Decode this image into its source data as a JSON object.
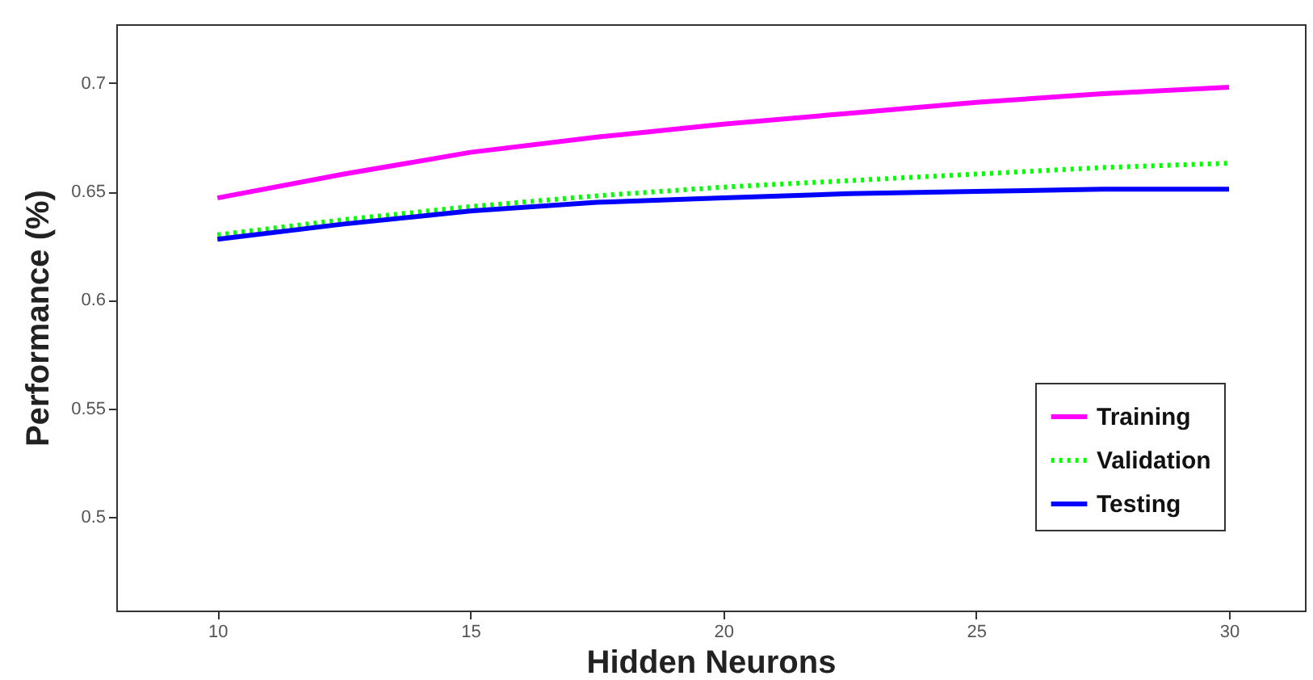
{
  "chart_data": {
    "type": "line",
    "xlabel": "Hidden Neurons",
    "ylabel": "Performance (%)",
    "x": [
      10,
      12.5,
      15,
      17.5,
      20,
      22.5,
      25,
      27.5,
      30
    ],
    "series": [
      {
        "name": "Training",
        "color": "#ff00ff",
        "line_style": "solid",
        "values": [
          0.647,
          0.658,
          0.668,
          0.675,
          0.681,
          0.686,
          0.691,
          0.695,
          0.698
        ]
      },
      {
        "name": "Validation",
        "color": "#00ff00",
        "line_style": "dotted",
        "values": [
          0.63,
          0.637,
          0.643,
          0.648,
          0.652,
          0.655,
          0.658,
          0.661,
          0.663
        ]
      },
      {
        "name": "Testing",
        "color": "#0000ff",
        "line_style": "solid",
        "values": [
          0.628,
          0.635,
          0.641,
          0.645,
          0.647,
          0.649,
          0.65,
          0.651,
          0.651
        ]
      }
    ],
    "xlim": [
      8,
      31.5
    ],
    "ylim": [
      0.457,
      0.727
    ],
    "xticks": [
      10,
      15,
      20,
      25,
      30
    ],
    "yticks": [
      0.5,
      0.55,
      0.6,
      0.65,
      0.7
    ],
    "grid": false,
    "legend": "bottom right",
    "marker": "none"
  }
}
